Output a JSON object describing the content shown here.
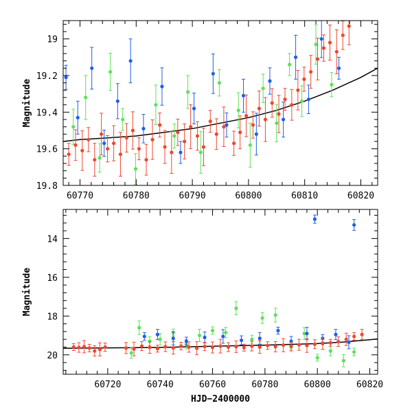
{
  "colors": {
    "red": "#f0462d",
    "green": "#5fe05a",
    "blue": "#1f5fe6",
    "model": "#000000"
  },
  "chart_data": [
    {
      "type": "scatter",
      "title": "",
      "xlabel": "",
      "ylabel": "Magnitude",
      "xlim": [
        60767,
        60823
      ],
      "ylim": [
        19.8,
        18.9
      ],
      "y_inverted": true,
      "xticks": [
        60770,
        60780,
        60790,
        60800,
        60810,
        60820
      ],
      "yticks": [
        19,
        19.2,
        19.4,
        19.6,
        19.8
      ],
      "grid": false,
      "legend": "none",
      "series": [
        {
          "color": "red",
          "marker": "circle",
          "error_bars": true,
          "points": [
            [
              60768.0,
              19.63
            ],
            [
              60769.2,
              19.58
            ],
            [
              60770.4,
              19.61
            ],
            [
              60771.5,
              19.55
            ],
            [
              60772.6,
              19.66
            ],
            [
              60773.8,
              19.52
            ],
            [
              60774.9,
              19.6
            ],
            [
              60776.0,
              19.57
            ],
            [
              60777.2,
              19.63
            ],
            [
              60778.3,
              19.54
            ],
            [
              60779.4,
              19.5
            ],
            [
              60780.5,
              19.6
            ],
            [
              60781.8,
              19.66
            ],
            [
              60782.9,
              19.55
            ],
            [
              60784.2,
              19.47
            ],
            [
              60785.1,
              19.59
            ],
            [
              60786.3,
              19.62
            ],
            [
              60787.4,
              19.51
            ],
            [
              60788.6,
              19.56
            ],
            [
              60789.7,
              19.48
            ],
            [
              60790.9,
              19.53
            ],
            [
              60792.0,
              19.59
            ],
            [
              60793.2,
              19.45
            ],
            [
              60794.3,
              19.52
            ],
            [
              60795.6,
              19.48
            ],
            [
              60797.4,
              19.57
            ],
            [
              60798.5,
              19.51
            ],
            [
              60799.6,
              19.42
            ],
            [
              60800.8,
              19.47
            ],
            [
              60801.9,
              19.38
            ],
            [
              60803.0,
              19.44
            ],
            [
              60804.2,
              19.35
            ],
            [
              60805.4,
              19.41
            ],
            [
              60806.5,
              19.33
            ],
            [
              60807.7,
              19.36
            ],
            [
              60808.8,
              19.28
            ],
            [
              60809.9,
              19.22
            ],
            [
              60811.1,
              19.18
            ],
            [
              60812.3,
              19.11
            ],
            [
              60813.4,
              19.05
            ],
            [
              60814.5,
              19.02
            ],
            [
              60815.7,
              19.07
            ],
            [
              60816.8,
              18.98
            ],
            [
              60817.9,
              18.93
            ]
          ]
        },
        {
          "color": "green",
          "marker": "circle",
          "error_bars": true,
          "points": [
            [
              60768.8,
              19.48
            ],
            [
              60771.0,
              19.32
            ],
            [
              60773.5,
              19.65
            ],
            [
              60775.4,
              19.18
            ],
            [
              60777.6,
              19.44
            ],
            [
              60779.9,
              19.71
            ],
            [
              60783.5,
              19.36
            ],
            [
              60786.8,
              19.53
            ],
            [
              60789.2,
              19.29
            ],
            [
              60791.5,
              19.62
            ],
            [
              60794.8,
              19.24
            ],
            [
              60798.2,
              19.39
            ],
            [
              60800.3,
              19.58
            ],
            [
              60802.6,
              19.27
            ],
            [
              60805.0,
              19.46
            ],
            [
              60807.3,
              19.14
            ],
            [
              60809.5,
              19.34
            ],
            [
              60812.0,
              19.03
            ],
            [
              60814.8,
              19.25
            ]
          ]
        },
        {
          "color": "blue",
          "marker": "circle",
          "error_bars": true,
          "points": [
            [
              60767.5,
              19.21
            ],
            [
              60769.6,
              19.43
            ],
            [
              60772.1,
              19.16
            ],
            [
              60774.3,
              19.57
            ],
            [
              60776.7,
              19.34
            ],
            [
              60779.0,
              19.12
            ],
            [
              60781.3,
              19.49
            ],
            [
              60784.6,
              19.26
            ],
            [
              60787.9,
              19.62
            ],
            [
              60790.3,
              19.38
            ],
            [
              60793.7,
              19.19
            ],
            [
              60796.1,
              19.47
            ],
            [
              60799.1,
              19.31
            ],
            [
              60801.4,
              19.52
            ],
            [
              60803.8,
              19.23
            ],
            [
              60806.2,
              19.44
            ],
            [
              60808.4,
              19.1
            ],
            [
              60810.7,
              19.33
            ],
            [
              60813.0,
              19.0
            ],
            [
              60816.1,
              19.16
            ]
          ]
        }
      ],
      "model": {
        "color": "model",
        "x": [
          60767,
          60770,
          60775,
          60780,
          60785,
          60790,
          60795,
          60800,
          60805,
          60810,
          60815,
          60820,
          60823
        ],
        "y": [
          19.56,
          19.55,
          19.54,
          19.53,
          19.51,
          19.49,
          19.46,
          19.43,
          19.39,
          19.34,
          19.28,
          19.21,
          19.16
        ]
      }
    },
    {
      "type": "scatter",
      "title": "",
      "xlabel": "HJD−2400000",
      "ylabel": "Magnitude",
      "xlim": [
        60703,
        60823
      ],
      "ylim": [
        21,
        12.5
      ],
      "y_inverted": true,
      "xticks": [
        60720,
        60740,
        60760,
        60780,
        60800,
        60820
      ],
      "yticks": [
        14,
        16,
        18,
        20
      ],
      "grid": false,
      "legend": "none",
      "series": [
        {
          "color": "red",
          "marker": "circle",
          "error_bars": true,
          "points": [
            [
              60707,
              19.6
            ],
            [
              60709,
              19.62
            ],
            [
              60711,
              19.58
            ],
            [
              60713,
              19.65
            ],
            [
              60715,
              19.8
            ],
            [
              60717,
              19.72
            ],
            [
              60719,
              19.6
            ],
            [
              60727,
              19.65
            ],
            [
              60730,
              19.7
            ],
            [
              60733,
              19.55
            ],
            [
              60736,
              19.62
            ],
            [
              60739,
              19.68
            ],
            [
              60742,
              19.58
            ],
            [
              60745,
              19.64
            ],
            [
              60748,
              19.55
            ],
            [
              60751,
              19.6
            ],
            [
              60754,
              19.66
            ],
            [
              60757,
              19.57
            ],
            [
              60760,
              19.62
            ],
            [
              60763,
              19.55
            ],
            [
              60766,
              19.6
            ],
            [
              60769,
              19.58
            ],
            [
              60772,
              19.63
            ],
            [
              60775,
              19.55
            ],
            [
              60778,
              19.6
            ],
            [
              60781,
              19.52
            ],
            [
              60784,
              19.58
            ],
            [
              60787,
              19.5
            ],
            [
              60790,
              19.55
            ],
            [
              60793,
              19.48
            ],
            [
              60796,
              19.52
            ],
            [
              60799,
              19.45
            ],
            [
              60802,
              19.42
            ],
            [
              60805,
              19.38
            ],
            [
              60808,
              19.32
            ],
            [
              60811,
              19.2
            ],
            [
              60814,
              19.05
            ],
            [
              60817,
              18.95
            ]
          ]
        },
        {
          "color": "green",
          "marker": "circle",
          "error_bars": true,
          "points": [
            [
              60729,
              19.9
            ],
            [
              60732,
              18.6
            ],
            [
              60736,
              19.3
            ],
            [
              60740,
              19.2
            ],
            [
              60745,
              18.85
            ],
            [
              60750,
              19.45
            ],
            [
              60755,
              19.0
            ],
            [
              60760,
              18.75
            ],
            [
              60765,
              18.85
            ],
            [
              60769,
              17.6
            ],
            [
              60775,
              19.2
            ],
            [
              60779,
              18.1
            ],
            [
              60784,
              17.95
            ],
            [
              60790,
              19.6
            ],
            [
              60795,
              18.9
            ],
            [
              60800,
              20.15
            ],
            [
              60805,
              19.8
            ],
            [
              60810,
              20.3
            ],
            [
              60814,
              19.85
            ]
          ]
        },
        {
          "color": "blue",
          "marker": "circle",
          "error_bars": true,
          "points": [
            [
              60734,
              19.05
            ],
            [
              60739,
              18.95
            ],
            [
              60745,
              19.15
            ],
            [
              60750,
              19.3
            ],
            [
              60757,
              19.1
            ],
            [
              60764,
              19.05
            ],
            [
              60771,
              19.25
            ],
            [
              60778,
              19.15
            ],
            [
              60785,
              18.75
            ],
            [
              60790,
              19.3
            ],
            [
              60796,
              18.9
            ],
            [
              60802,
              19.15
            ],
            [
              60807,
              18.95
            ],
            [
              60812,
              19.35
            ],
            [
              60799,
              13.0
            ],
            [
              60814,
              13.3
            ]
          ]
        }
      ],
      "model": {
        "color": "model",
        "x": [
          60703,
          60740,
          60780,
          60800,
          60810,
          60820,
          60823
        ],
        "y": [
          19.66,
          19.62,
          19.5,
          19.42,
          19.34,
          19.22,
          19.18
        ]
      }
    }
  ]
}
